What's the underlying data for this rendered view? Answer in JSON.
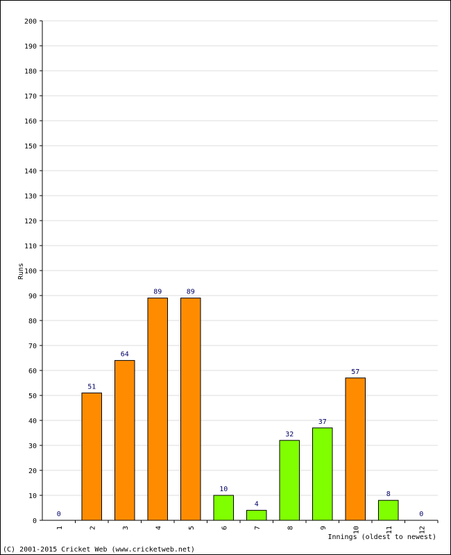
{
  "chart_data": {
    "type": "bar",
    "ylabel": "Runs",
    "xlabel": "Innings (oldest to newest)",
    "ylim": [
      0,
      200
    ],
    "y_ticks": [
      0,
      10,
      20,
      30,
      40,
      50,
      60,
      70,
      80,
      90,
      100,
      110,
      120,
      130,
      140,
      150,
      160,
      170,
      180,
      190,
      200
    ],
    "grid": true,
    "categories": [
      "1",
      "2",
      "3",
      "4",
      "5",
      "6",
      "7",
      "8",
      "9",
      "10",
      "11",
      "12"
    ],
    "values": [
      0,
      51,
      64,
      89,
      89,
      10,
      4,
      32,
      37,
      57,
      8,
      0
    ],
    "data_labels": [
      "0",
      "51",
      "64",
      "89",
      "89",
      "10",
      "4",
      "32",
      "37",
      "57",
      "8",
      "0"
    ],
    "bar_colors": [
      "#ff8c00",
      "#ff8c00",
      "#ff8c00",
      "#ff8c00",
      "#ff8c00",
      "#80ff00",
      "#80ff00",
      "#80ff00",
      "#80ff00",
      "#ff8c00",
      "#80ff00",
      "#80ff00"
    ]
  },
  "colors": {
    "orange": "#ff8c00",
    "green": "#80ff00",
    "bar_outline": "#000000",
    "grid": "#dddddd",
    "data_label": "#000066"
  },
  "footer": {
    "copyright": "(C) 2001-2015 Cricket Web (www.cricketweb.net)"
  }
}
